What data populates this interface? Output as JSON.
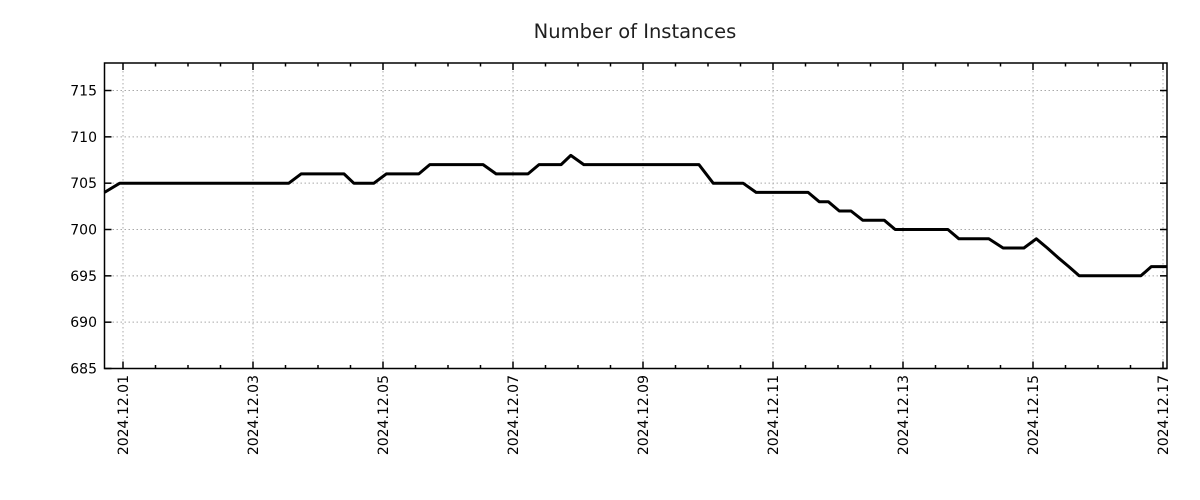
{
  "page": {
    "background_color": "#ffffff"
  },
  "chart_data": {
    "type": "line",
    "title": "Number of Instances",
    "xlabel": "",
    "ylabel": "",
    "grid": "dotted",
    "legend": "none",
    "line_color": "#000000",
    "line_width": 3,
    "grid_color": "#a9a9a9",
    "border_color": "#000000",
    "title_color": "#1f1f1f",
    "tick_label_color": "#000000",
    "ylim": [
      685,
      718
    ],
    "xlim_days": [
      -0.285,
      16.06
    ],
    "y_ticks": [
      685,
      690,
      695,
      700,
      705,
      710,
      715
    ],
    "x_minor_tick_step_days": 0.5,
    "x_ticks": [
      {
        "d": 0,
        "label": "2024.12.01"
      },
      {
        "d": 2,
        "label": "2024.12.03"
      },
      {
        "d": 4,
        "label": "2024.12.05"
      },
      {
        "d": 6,
        "label": "2024.12.07"
      },
      {
        "d": 8,
        "label": "2024.12.09"
      },
      {
        "d": 10,
        "label": "2024.12.11"
      },
      {
        "d": 12,
        "label": "2024.12.13"
      },
      {
        "d": 14,
        "label": "2024.12.15"
      },
      {
        "d": 16,
        "label": "2024.12.17"
      }
    ],
    "series": [
      {
        "name": "instances",
        "note": "d = days since 2024-12-01 00:00; v = instance count; breakpoints of the step curve",
        "points": [
          {
            "d": -0.285,
            "v": 704
          },
          {
            "d": -0.05,
            "v": 705
          },
          {
            "d": 2.55,
            "v": 705
          },
          {
            "d": 2.74,
            "v": 706
          },
          {
            "d": 3.4,
            "v": 706
          },
          {
            "d": 3.55,
            "v": 705
          },
          {
            "d": 3.86,
            "v": 705
          },
          {
            "d": 4.05,
            "v": 706
          },
          {
            "d": 4.55,
            "v": 706
          },
          {
            "d": 4.72,
            "v": 707
          },
          {
            "d": 5.54,
            "v": 707
          },
          {
            "d": 5.74,
            "v": 706
          },
          {
            "d": 6.23,
            "v": 706
          },
          {
            "d": 6.4,
            "v": 707
          },
          {
            "d": 6.74,
            "v": 707
          },
          {
            "d": 6.89,
            "v": 708
          },
          {
            "d": 7.09,
            "v": 707
          },
          {
            "d": 8.86,
            "v": 707
          },
          {
            "d": 9.08,
            "v": 705
          },
          {
            "d": 9.54,
            "v": 705
          },
          {
            "d": 9.74,
            "v": 704
          },
          {
            "d": 10.54,
            "v": 704
          },
          {
            "d": 10.71,
            "v": 703
          },
          {
            "d": 10.85,
            "v": 703
          },
          {
            "d": 11.02,
            "v": 702
          },
          {
            "d": 11.2,
            "v": 702
          },
          {
            "d": 11.38,
            "v": 701
          },
          {
            "d": 11.71,
            "v": 701
          },
          {
            "d": 11.88,
            "v": 700
          },
          {
            "d": 12.69,
            "v": 700
          },
          {
            "d": 12.86,
            "v": 699
          },
          {
            "d": 13.32,
            "v": 699
          },
          {
            "d": 13.54,
            "v": 698
          },
          {
            "d": 13.86,
            "v": 698
          },
          {
            "d": 14.05,
            "v": 699
          },
          {
            "d": 14.22,
            "v": 698
          },
          {
            "d": 14.38,
            "v": 697
          },
          {
            "d": 14.55,
            "v": 696
          },
          {
            "d": 14.71,
            "v": 695
          },
          {
            "d": 15.66,
            "v": 695
          },
          {
            "d": 15.82,
            "v": 696
          },
          {
            "d": 16.06,
            "v": 696
          }
        ]
      }
    ]
  }
}
